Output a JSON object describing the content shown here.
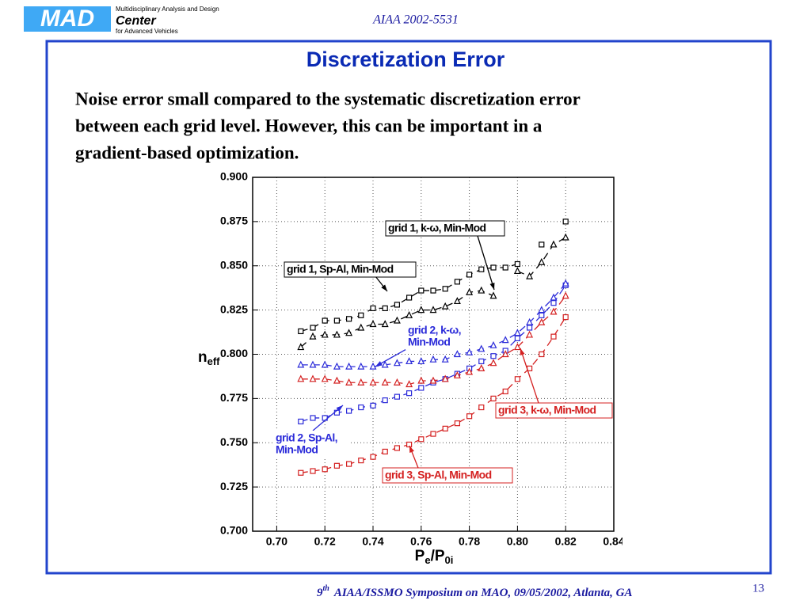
{
  "header": {
    "logo": "MAD",
    "logo_line1": "Multidisciplinary Analysis and Design",
    "logo_line2": "Center",
    "logo_line3": "for Advanced Vehicles",
    "paper_id": "AIAA 2002-5531"
  },
  "slide": {
    "title": "Discretization Error",
    "body": [
      "Noise error small compared to the systematic discretization error",
      "between each grid level. However, this can be important in a",
      "gradient-based optimization."
    ]
  },
  "chart_data": {
    "type": "line",
    "x_label": [
      "P",
      "e",
      "/P",
      "0i"
    ],
    "y_label": [
      "n",
      "eff"
    ],
    "x": [
      0.71,
      0.715,
      0.72,
      0.725,
      0.73,
      0.735,
      0.74,
      0.745,
      0.75,
      0.755,
      0.76,
      0.765,
      0.77,
      0.775,
      0.78,
      0.785,
      0.79,
      0.795,
      0.8,
      0.805,
      0.81,
      0.815,
      0.82
    ],
    "xlim": [
      0.69,
      0.84
    ],
    "ylim": [
      0.7,
      0.9
    ],
    "xticks": [
      {
        "value": 0.7,
        "label": "0.70"
      },
      {
        "value": 0.72,
        "label": "0.72"
      },
      {
        "value": 0.74,
        "label": "0.74"
      },
      {
        "value": 0.76,
        "label": "0.76"
      },
      {
        "value": 0.78,
        "label": "0.78"
      },
      {
        "value": 0.8,
        "label": "0.80"
      },
      {
        "value": 0.82,
        "label": "0.82"
      },
      {
        "value": 0.84,
        "label": "0.84"
      }
    ],
    "yticks": [
      {
        "value": 0.7,
        "label": "0.700"
      },
      {
        "value": 0.725,
        "label": "0.725"
      },
      {
        "value": 0.75,
        "label": "0.750"
      },
      {
        "value": 0.775,
        "label": "0.775"
      },
      {
        "value": 0.8,
        "label": "0.800"
      },
      {
        "value": 0.825,
        "label": "0.825"
      },
      {
        "value": 0.85,
        "label": "0.850"
      },
      {
        "value": 0.875,
        "label": "0.875"
      },
      {
        "value": 0.9,
        "label": "0.900"
      }
    ],
    "grid": true,
    "series": [
      {
        "color": "#000000",
        "marker": "square",
        "values": [
          0.813,
          0.815,
          0.819,
          0.819,
          0.82,
          0.822,
          0.826,
          0.826,
          0.828,
          0.832,
          0.836,
          0.836,
          0.837,
          0.841,
          0.845,
          0.848,
          0.849,
          0.849,
          0.851,
          null,
          0.862,
          null,
          0.875
        ]
      },
      {
        "color": "#000000",
        "marker": "triangle",
        "values": [
          0.804,
          0.81,
          0.811,
          0.811,
          0.812,
          0.815,
          0.817,
          0.817,
          0.819,
          0.822,
          0.825,
          0.825,
          0.827,
          0.83,
          0.835,
          0.836,
          0.833,
          null,
          0.847,
          0.844,
          0.852,
          0.862,
          0.866
        ]
      },
      {
        "color": "#2b2bd9",
        "marker": "square",
        "values": [
          0.762,
          0.764,
          0.764,
          0.767,
          0.768,
          0.77,
          0.771,
          0.774,
          0.776,
          0.778,
          0.781,
          0.784,
          0.786,
          0.789,
          0.792,
          0.796,
          0.799,
          0.802,
          0.809,
          0.815,
          0.822,
          0.829,
          0.839
        ]
      },
      {
        "color": "#2b2bd9",
        "marker": "triangle",
        "values": [
          0.794,
          0.794,
          0.794,
          0.793,
          0.793,
          0.793,
          0.793,
          0.794,
          0.795,
          0.796,
          0.796,
          0.797,
          0.797,
          0.8,
          0.801,
          0.803,
          0.805,
          0.808,
          0.812,
          0.818,
          0.825,
          0.832,
          0.84
        ]
      },
      {
        "color": "#d42020",
        "marker": "square",
        "values": [
          0.733,
          0.734,
          0.735,
          0.737,
          0.738,
          0.74,
          0.742,
          0.745,
          0.747,
          0.749,
          0.752,
          0.755,
          0.758,
          0.761,
          0.765,
          0.77,
          0.775,
          0.779,
          0.786,
          0.792,
          0.8,
          0.81,
          0.821
        ]
      },
      {
        "color": "#d42020",
        "marker": "triangle",
        "values": [
          0.786,
          0.786,
          0.786,
          0.785,
          0.784,
          0.784,
          0.784,
          0.784,
          0.784,
          0.783,
          0.785,
          0.785,
          0.786,
          0.788,
          0.79,
          0.792,
          0.795,
          0.8,
          0.804,
          0.811,
          0.818,
          0.824,
          0.833
        ]
      }
    ],
    "annotations": [
      {
        "lines": [
          "grid 1, k-ω, Min-Mod"
        ],
        "color": "#000000"
      },
      {
        "lines": [
          "grid 1, Sp-Al, Min-Mod"
        ],
        "color": "#000000"
      },
      {
        "lines": [
          "grid 2, k-ω,",
          "Min-Mod"
        ],
        "color": "#2b2bd9"
      },
      {
        "lines": [
          "grid 2, Sp-Al,",
          "Min-Mod"
        ],
        "color": "#2b2bd9"
      },
      {
        "lines": [
          "grid 3, k-ω, Min-Mod"
        ],
        "color": "#d42020"
      },
      {
        "lines": [
          "grid 3, Sp-Al, Min-Mod"
        ],
        "color": "#d42020"
      }
    ]
  },
  "footer": {
    "ordinal": "9",
    "ordinal_suffix": "th",
    "text": "AIAA/ISSMO Symposium on MAO, 09/05/2002, Atlanta, GA",
    "page": "13"
  }
}
